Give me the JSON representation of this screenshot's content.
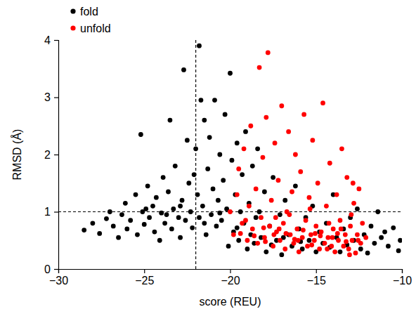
{
  "chart_data": {
    "type": "scatter",
    "x_label": "score (REU)",
    "y_label": "RMSD (Å)",
    "xlim": [
      -30,
      -10
    ],
    "xticks": [
      {
        "value": -30,
        "label": "−30"
      },
      {
        "value": -25,
        "label": "−25"
      },
      {
        "value": -20,
        "label": "−20"
      },
      {
        "value": -15,
        "label": "−15"
      },
      {
        "value": -10,
        "label": "−10"
      }
    ],
    "ylim": [
      0,
      4
    ],
    "yticks": [
      0,
      1,
      2,
      3,
      4
    ],
    "grid": false,
    "legend": "upper left",
    "marker": "circle",
    "reference_lines": {
      "x": -22,
      "y": 1
    },
    "series": [
      {
        "name": "fold",
        "color": "#000000",
        "x": [
          -28.5,
          -28,
          -27.6,
          -27.2,
          -27,
          -26.8,
          -26.5,
          -26.3,
          -26.1,
          -26,
          -25.8,
          -25.5,
          -25.4,
          -25.2,
          -25.1,
          -25,
          -24.8,
          -24.7,
          -24.5,
          -24.4,
          -24.3,
          -24.1,
          -24,
          -23.9,
          -23.8,
          -23.6,
          -23.5,
          -23.4,
          -23.3,
          -23.2,
          -23,
          -22.9,
          -22.8,
          -22.7,
          -22.6,
          -22.5,
          -22.4,
          -22.3,
          -22.2,
          -22.1,
          -22,
          -21.9,
          -21.8,
          -21.8,
          -21.7,
          -21.6,
          -21.5,
          -21.4,
          -21.3,
          -21.2,
          -21.1,
          -21,
          -20.9,
          -20.8,
          -20.7,
          -20.6,
          -20.5,
          -20.4,
          -20.3,
          -20.2,
          -20.1,
          -20,
          -19.9,
          -19.8,
          -19.7,
          -19.6,
          -19.5,
          -19.4,
          -19.3,
          -19.2,
          -19.1,
          -19,
          -18.9,
          -18.8,
          -18.7,
          -18.6,
          -18.5,
          -18.4,
          -18.2,
          -18,
          -17.9,
          -17.7,
          -17.5,
          -17.3,
          -17.1,
          -17,
          -16.8,
          -16.6,
          -16.4,
          -16.2,
          -16,
          -15.8,
          -15.6,
          -15.4,
          -15.2,
          -15,
          -14.8,
          -14.6,
          -14.4,
          -14.2,
          -14,
          -13.8,
          -13.6,
          -13.4,
          -13.2,
          -13,
          -12.8,
          -12.6,
          -12.4,
          -12.2,
          -12,
          -11.8,
          -11.6,
          -11.4,
          -11.2,
          -11,
          -10.8,
          -10.5,
          -10.2,
          -10.1,
          -24.9,
          -23.7,
          -22.9,
          -21.5,
          -20.6,
          -19.6,
          -18.3,
          -17.6,
          -16.9,
          -15.9
        ],
        "values": [
          0.68,
          0.8,
          0.62,
          0.88,
          1.0,
          0.75,
          0.55,
          0.95,
          1.15,
          0.7,
          0.85,
          1.3,
          0.6,
          2.35,
          1.0,
          0.78,
          1.45,
          0.9,
          1.1,
          0.65,
          1.25,
          0.5,
          0.98,
          1.6,
          0.8,
          1.35,
          2.6,
          0.7,
          1.05,
          1.8,
          0.9,
          0.55,
          1.2,
          3.48,
          0.85,
          2.25,
          1.5,
          1.0,
          0.72,
          1.65,
          2.1,
          1.3,
          3.9,
          0.9,
          2.95,
          1.1,
          2.6,
          0.6,
          1.75,
          2.3,
          0.95,
          1.4,
          2.95,
          0.75,
          1.2,
          2.0,
          0.85,
          1.55,
          2.7,
          1.05,
          0.4,
          3.42,
          1.9,
          0.65,
          1.3,
          2.2,
          0.5,
          1.0,
          1.65,
          0.8,
          2.4,
          0.35,
          1.15,
          0.6,
          1.8,
          0.45,
          0.9,
          2.1,
          0.55,
          1.35,
          0.3,
          0.75,
          1.6,
          0.5,
          0.95,
          0.25,
          1.2,
          0.6,
          0.4,
          1.45,
          0.7,
          0.35,
          0.9,
          0.5,
          1.1,
          0.3,
          0.65,
          0.45,
          0.8,
          0.38,
          1.3,
          0.55,
          0.3,
          0.7,
          0.42,
          0.9,
          0.5,
          1.05,
          0.35,
          0.6,
          0.28,
          0.75,
          0.45,
          1.0,
          0.55,
          0.65,
          0.4,
          0.72,
          0.32,
          0.5,
          1.05,
          0.95,
          1.1,
          0.8,
          0.98,
          0.72,
          1.0,
          0.42,
          0.55,
          0.48
        ]
      },
      {
        "name": "unfold",
        "color": "#ff0000",
        "x": [
          -20,
          -19.8,
          -19.6,
          -19.5,
          -19.3,
          -19.2,
          -19,
          -18.9,
          -18.8,
          -18.7,
          -18.5,
          -18.4,
          -18.3,
          -18.2,
          -18.1,
          -18,
          -17.9,
          -17.8,
          -17.7,
          -17.6,
          -17.5,
          -17.4,
          -17.3,
          -17.2,
          -17.1,
          -17,
          -16.9,
          -16.8,
          -16.7,
          -16.6,
          -16.5,
          -16.4,
          -16.3,
          -16.2,
          -16.1,
          -16,
          -15.9,
          -15.8,
          -15.7,
          -15.6,
          -15.5,
          -15.4,
          -15.3,
          -15.2,
          -15.1,
          -15,
          -14.9,
          -14.8,
          -14.7,
          -14.6,
          -14.5,
          -14.4,
          -14.3,
          -14.2,
          -14.1,
          -14,
          -13.9,
          -13.8,
          -13.7,
          -13.6,
          -13.5,
          -13.4,
          -13.3,
          -13.2,
          -13.1,
          -13,
          -12.9,
          -12.8,
          -12.7,
          -12.6,
          -12.5,
          -12.4,
          -12.3,
          -12.1,
          -19.4,
          -18.6,
          -17.95,
          -17.35,
          -16.75,
          -16.25,
          -15.75,
          -15.25,
          -14.75,
          -14.25,
          -13.75,
          -13.25,
          -18.05,
          -16.55,
          -15.35,
          -14.05,
          -17.45,
          -16.05,
          -15.05,
          -13.55,
          -12.95,
          -12.55,
          -19.1,
          -17.15,
          -14.35,
          -13.05,
          -12.85
        ],
        "values": [
          1.0,
          0.6,
          1.3,
          1.75,
          0.8,
          2.1,
          0.5,
          1.1,
          2.5,
          0.7,
          1.4,
          0.45,
          3.52,
          0.9,
          1.95,
          0.55,
          2.65,
          3.78,
          0.75,
          1.2,
          0.4,
          2.2,
          0.65,
          1.55,
          0.5,
          2.85,
          0.8,
          0.35,
          1.0,
          2.4,
          0.6,
          1.35,
          0.45,
          2.0,
          0.7,
          0.3,
          1.7,
          0.55,
          2.7,
          0.85,
          0.4,
          1.25,
          0.6,
          2.25,
          0.5,
          0.75,
          1.5,
          0.35,
          0.65,
          2.9,
          0.45,
          1.1,
          0.55,
          1.85,
          0.4,
          0.7,
          0.3,
          1.3,
          0.5,
          0.85,
          2.1,
          0.4,
          0.6,
          1.6,
          0.35,
          0.75,
          0.5,
          1.15,
          0.28,
          0.6,
          1.4,
          0.45,
          0.8,
          0.55,
          0.62,
          0.58,
          0.48,
          0.9,
          0.62,
          0.52,
          0.68,
          0.42,
          0.58,
          0.8,
          0.62,
          0.48,
          0.72,
          0.95,
          1.05,
          0.55,
          0.6,
          0.5,
          0.62,
          0.7,
          0.95,
          0.5,
          0.85,
          0.7,
          0.35,
          0.25,
          1.5
        ]
      }
    ]
  }
}
